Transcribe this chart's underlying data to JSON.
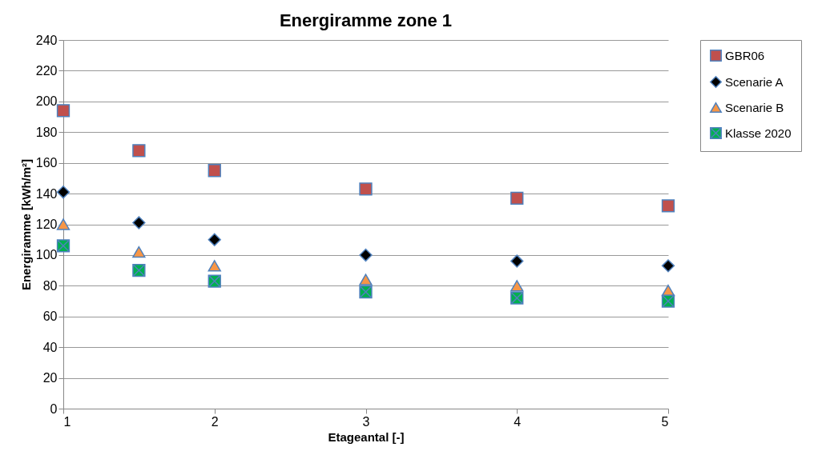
{
  "chart_data": {
    "type": "scatter",
    "title": "Energiramme zone 1",
    "xlabel": "Etageantal [-]",
    "ylabel": "Energiramme [kWh/m²]",
    "x": [
      1,
      1.5,
      2,
      3,
      4,
      5
    ],
    "series": [
      {
        "name": "GBR06",
        "color": "#c0504d",
        "marker": "square",
        "values": [
          194,
          168,
          155,
          143,
          137,
          132
        ]
      },
      {
        "name": "Scenarie A",
        "color": "#000000",
        "marker": "diamond",
        "values": [
          141,
          121,
          110,
          100,
          96,
          93
        ]
      },
      {
        "name": "Scenarie B",
        "color": "#f79646",
        "marker": "triangle",
        "values": [
          120,
          102,
          93,
          84,
          80,
          77
        ]
      },
      {
        "name": "Klasse 2020",
        "color": "#00b050",
        "marker": "cross",
        "values": [
          106,
          90,
          83,
          76,
          72,
          70
        ]
      }
    ],
    "xlim": [
      1,
      5
    ],
    "xticks": [
      1,
      2,
      3,
      4,
      5
    ],
    "ylim": [
      0,
      240
    ],
    "yticks": [
      0,
      20,
      40,
      60,
      80,
      100,
      120,
      140,
      160,
      180,
      200,
      220,
      240
    ],
    "grid": "y",
    "legend": "right"
  }
}
